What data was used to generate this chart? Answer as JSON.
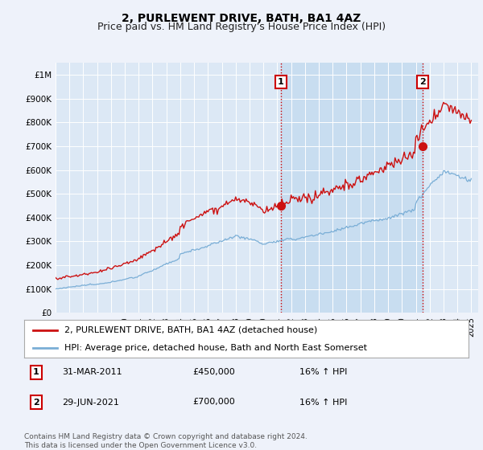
{
  "title": "2, PURLEWENT DRIVE, BATH, BA1 4AZ",
  "subtitle": "Price paid vs. HM Land Registry's House Price Index (HPI)",
  "ylim": [
    0,
    1050000
  ],
  "yticks": [
    0,
    100000,
    200000,
    300000,
    400000,
    500000,
    600000,
    700000,
    800000,
    900000,
    1000000
  ],
  "ytick_labels": [
    "£0",
    "£100K",
    "£200K",
    "£300K",
    "£400K",
    "£500K",
    "£600K",
    "£700K",
    "£800K",
    "£900K",
    "£1M"
  ],
  "xlim_start": 1995.0,
  "xlim_end": 2025.5,
  "background_color": "#eef2fa",
  "plot_bg_color": "#dce8f5",
  "shade_color": "#c8ddf0",
  "grid_color": "#ffffff",
  "transaction1_x": 2011.25,
  "transaction1_y": 450000,
  "transaction2_x": 2021.5,
  "transaction2_y": 700000,
  "vline_color": "#cc0000",
  "red_line_color": "#cc1111",
  "blue_line_color": "#7aaed6",
  "annotation1_date": "31-MAR-2011",
  "annotation1_price": "£450,000",
  "annotation1_hpi": "16% ↑ HPI",
  "annotation2_date": "29-JUN-2021",
  "annotation2_price": "£700,000",
  "annotation2_hpi": "16% ↑ HPI",
  "footnote": "Contains HM Land Registry data © Crown copyright and database right 2024.\nThis data is licensed under the Open Government Licence v3.0.",
  "title_fontsize": 10,
  "subtitle_fontsize": 9
}
